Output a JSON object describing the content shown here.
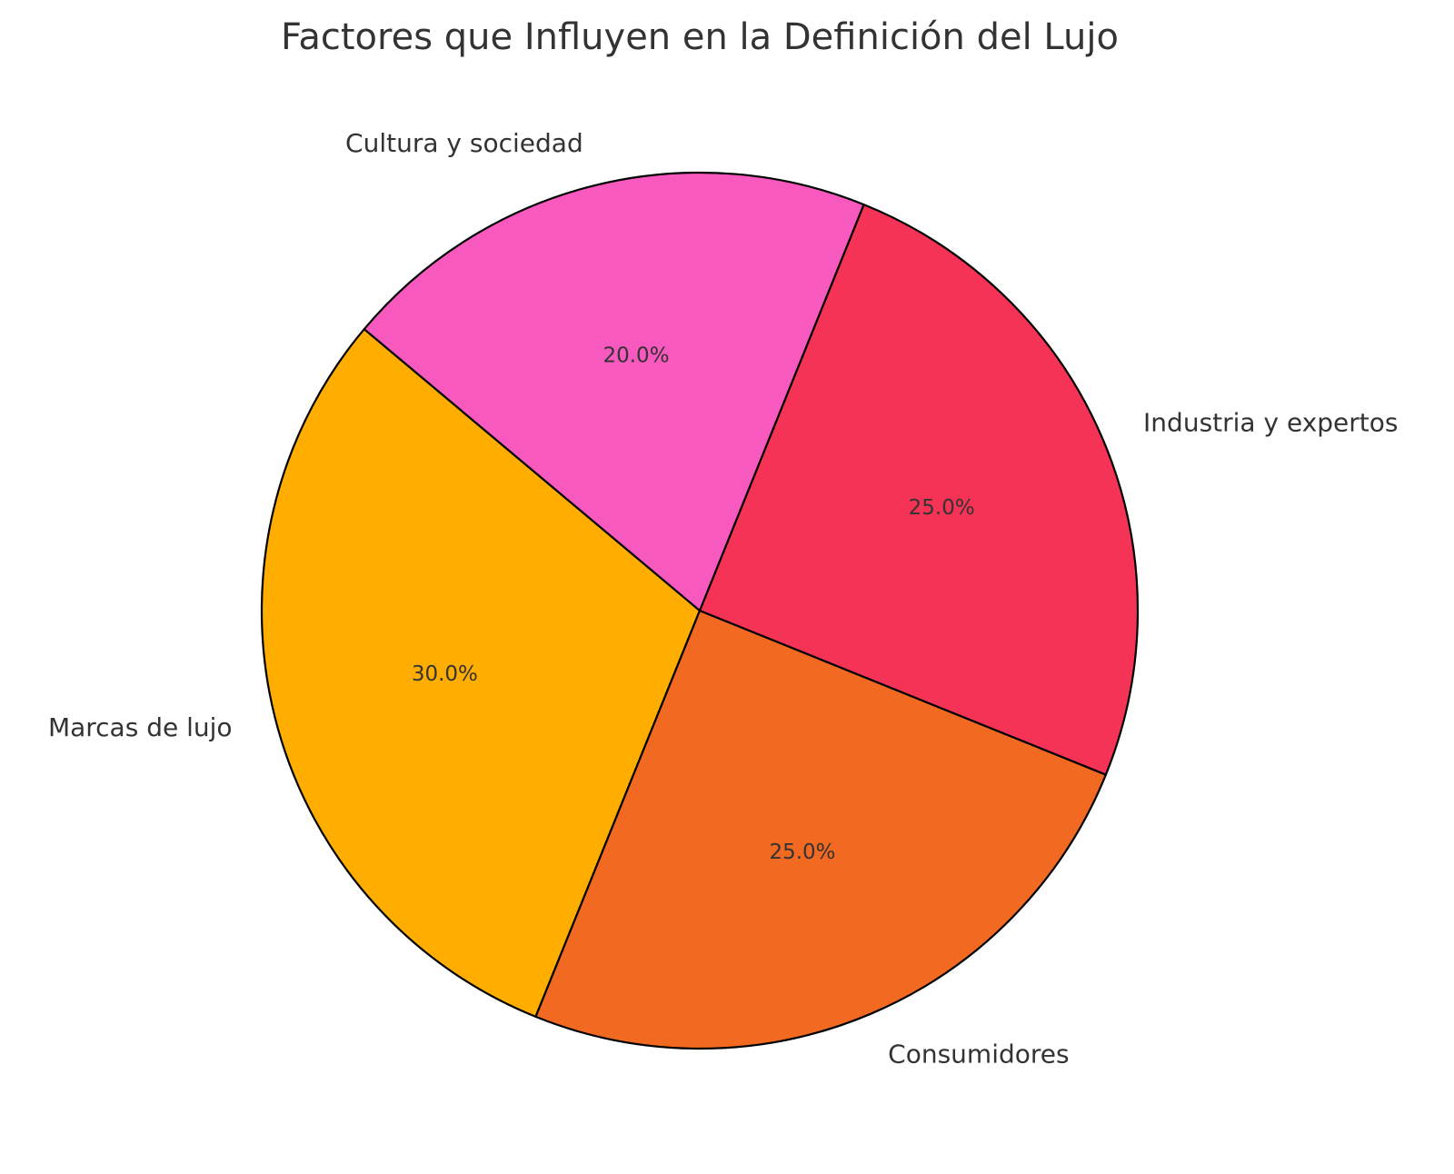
{
  "chart_data": {
    "type": "pie",
    "title": "Factores que Influyen en la Definición del Lujo",
    "slices": [
      {
        "label": "Marcas de lujo",
        "value": 30.0,
        "display": "30.0%",
        "color": "#FFAE00"
      },
      {
        "label": "Consumidores",
        "value": 25.0,
        "display": "25.0%",
        "color": "#F26A22"
      },
      {
        "label": "Industria y expertos",
        "value": 25.0,
        "display": "25.0%",
        "color": "#F53356"
      },
      {
        "label": "Cultura y sociedad",
        "value": 20.0,
        "display": "20.0%",
        "color": "#F759BF"
      }
    ],
    "start_angle_deg": 140,
    "direction": "counterclockwise",
    "edge_color": "#000000"
  }
}
